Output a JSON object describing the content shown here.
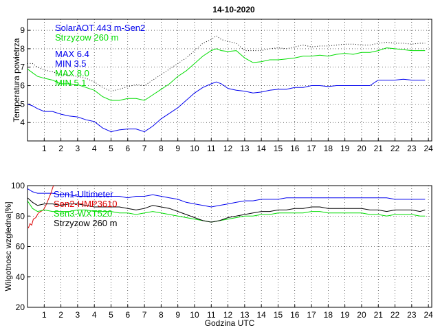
{
  "title": "14-10-2020",
  "colors": {
    "blue": "#0000ee",
    "green": "#00dd00",
    "black": "#000000",
    "red": "#dd0000"
  },
  "chart_data": [
    {
      "type": "line",
      "ylabel": "Temperatura powietrza",
      "xlim": [
        0,
        24.2
      ],
      "ylim": [
        3,
        9.6
      ],
      "xticks": [
        1,
        2,
        3,
        4,
        5,
        6,
        7,
        8,
        9,
        10,
        11,
        12,
        13,
        14,
        15,
        16,
        17,
        18,
        19,
        20,
        21,
        22,
        23,
        24
      ],
      "yticks": [
        4,
        5,
        6,
        7,
        8,
        9
      ],
      "grid": true,
      "legend": [
        "SolarAOT 443 m-Sen2",
        "Strzyzow 260 m"
      ],
      "annotations": [
        "MAX 6.4",
        "MIN 3.5",
        "MAX 8.0",
        "MIN 5.1"
      ],
      "series": [
        {
          "name": "SolarAOT 443 m-Sen2",
          "color": "blue",
          "style": "solid",
          "x": [
            0,
            0.3,
            0.6,
            1.0,
            1.5,
            2.0,
            2.5,
            3.0,
            3.5,
            4.0,
            4.5,
            5.0,
            5.5,
            6.0,
            6.5,
            7.0,
            7.5,
            8.0,
            8.5,
            9.0,
            9.5,
            10.0,
            10.5,
            11.0,
            11.3,
            11.6,
            12.0,
            12.5,
            13.0,
            13.5,
            14.0,
            14.5,
            15.0,
            15.5,
            16.0,
            16.5,
            17.0,
            17.5,
            18.0,
            18.5,
            19.0,
            19.5,
            20.0,
            20.5,
            21.0,
            21.5,
            22.0,
            22.5,
            23.0,
            23.5,
            23.8
          ],
          "y": [
            5.0,
            4.9,
            4.75,
            4.6,
            4.6,
            4.45,
            4.35,
            4.3,
            4.15,
            4.05,
            3.7,
            3.5,
            3.6,
            3.65,
            3.65,
            3.5,
            3.8,
            4.2,
            4.5,
            4.8,
            5.2,
            5.6,
            5.9,
            6.1,
            6.2,
            6.1,
            5.85,
            5.75,
            5.7,
            5.6,
            5.65,
            5.75,
            5.8,
            5.8,
            5.9,
            5.9,
            6.0,
            6.0,
            5.95,
            6.0,
            6.0,
            6.0,
            6.0,
            6.0,
            6.3,
            6.3,
            6.3,
            6.35,
            6.3,
            6.3,
            6.3
          ]
        },
        {
          "name": "Strzyzow 260 m",
          "color": "green",
          "style": "solid",
          "x": [
            0,
            0.3,
            0.6,
            1.0,
            1.5,
            2.0,
            2.5,
            3.0,
            3.5,
            4.0,
            4.5,
            5.0,
            5.5,
            6.0,
            6.5,
            7.0,
            7.5,
            8.0,
            8.5,
            9.0,
            9.5,
            10.0,
            10.5,
            11.0,
            11.3,
            11.6,
            12.0,
            12.5,
            13.0,
            13.5,
            14.0,
            14.5,
            15.0,
            15.5,
            16.0,
            16.5,
            17.0,
            17.5,
            18.0,
            18.5,
            19.0,
            19.5,
            20.0,
            20.5,
            21.0,
            21.5,
            22.0,
            22.5,
            23.0,
            23.5,
            23.8
          ],
          "y": [
            6.9,
            6.7,
            6.5,
            6.4,
            6.3,
            6.1,
            6.1,
            6.05,
            5.9,
            5.75,
            5.4,
            5.2,
            5.2,
            5.3,
            5.3,
            5.2,
            5.5,
            5.8,
            6.1,
            6.5,
            6.8,
            7.2,
            7.6,
            7.9,
            8.0,
            7.9,
            7.85,
            7.9,
            7.5,
            7.25,
            7.3,
            7.4,
            7.4,
            7.45,
            7.5,
            7.6,
            7.6,
            7.65,
            7.6,
            7.7,
            7.75,
            7.7,
            7.8,
            7.8,
            7.9,
            8.05,
            8.0,
            7.95,
            7.9,
            7.9,
            7.9
          ]
        },
        {
          "color": "black",
          "style": "dotted",
          "x": [
            0,
            0.3,
            0.6,
            1.0,
            1.5,
            2.0,
            2.5,
            3.0,
            3.5,
            4.0,
            4.5,
            5.0,
            5.5,
            6.0,
            6.5,
            7.0,
            7.5,
            8.0,
            8.5,
            9.0,
            9.5,
            10.0,
            10.5,
            11.0,
            11.3,
            11.6,
            12.0,
            12.5,
            13.0,
            13.5,
            14.0,
            14.5,
            15.0,
            15.5,
            16.0,
            16.5,
            17.0,
            17.5,
            18.0,
            18.5,
            19.0,
            19.5,
            20.0,
            20.5,
            21.0,
            21.5,
            22.0,
            22.5,
            23.0,
            23.5,
            23.8
          ],
          "y": [
            7.2,
            7.2,
            7.0,
            6.85,
            6.75,
            6.6,
            6.55,
            6.5,
            6.4,
            6.2,
            5.9,
            5.7,
            5.8,
            5.95,
            6.05,
            6.0,
            6.3,
            6.6,
            6.9,
            7.2,
            7.5,
            7.9,
            8.3,
            8.5,
            8.7,
            8.5,
            8.4,
            8.3,
            7.9,
            7.9,
            7.9,
            8.0,
            8.05,
            8.0,
            8.1,
            8.2,
            8.1,
            8.15,
            8.15,
            8.2,
            8.25,
            8.25,
            8.2,
            8.2,
            8.3,
            8.35,
            8.3,
            8.3,
            8.25,
            8.3,
            8.3
          ]
        }
      ]
    },
    {
      "type": "line",
      "xlabel": "Godzina UTC",
      "ylabel": "Wilgotnosc wzgledna[%]",
      "xlim": [
        0,
        24.2
      ],
      "ylim": [
        20,
        100
      ],
      "xticks": [
        1,
        2,
        3,
        4,
        5,
        6,
        7,
        8,
        9,
        10,
        11,
        12,
        13,
        14,
        15,
        16,
        17,
        18,
        19,
        20,
        21,
        22,
        23,
        24
      ],
      "yticks": [
        20,
        40,
        60,
        80,
        100
      ],
      "grid": true,
      "legend": [
        "Sen1-Ultimeter",
        "Sen2-HMP3610",
        "Sen3-WXT520",
        "Strzyzow 260 m"
      ],
      "series": [
        {
          "name": "Sen1-Ultimeter",
          "color": "blue",
          "style": "solid",
          "x": [
            0,
            0.3,
            0.6,
            1.0,
            1.5,
            2.0,
            2.5,
            3.0,
            3.5,
            4.0,
            4.5,
            5.0,
            5.5,
            6.0,
            6.5,
            7.0,
            7.5,
            8.0,
            8.5,
            9.0,
            9.5,
            10.0,
            10.5,
            11.0,
            11.5,
            12.0,
            12.5,
            13.0,
            13.5,
            14.0,
            14.5,
            15.0,
            15.5,
            16.0,
            16.5,
            17.0,
            17.5,
            18.0,
            18.5,
            19.0,
            19.5,
            20.0,
            20.5,
            21.0,
            21.5,
            22.0,
            22.5,
            23.0,
            23.5,
            23.8
          ],
          "y": [
            98,
            96,
            95,
            95,
            95,
            94,
            94,
            93,
            93,
            93,
            93,
            93,
            93,
            92,
            93,
            93,
            94,
            93,
            92,
            91,
            89,
            88,
            87,
            86,
            87,
            88,
            89,
            90,
            90,
            91,
            91,
            91,
            92,
            92,
            92,
            92,
            92,
            92,
            92,
            92,
            92,
            92,
            92,
            92,
            92,
            91,
            91,
            91,
            91,
            91
          ]
        },
        {
          "name": "Sen2-HMP3610",
          "color": "red",
          "style": "solid",
          "x": [
            0.05,
            0.15,
            0.25,
            0.35,
            0.5,
            0.65,
            0.8,
            0.95,
            1.1,
            1.25,
            1.4,
            1.55
          ],
          "y": [
            72,
            75,
            74,
            78,
            79,
            82,
            83,
            84,
            87,
            91,
            95,
            100
          ]
        },
        {
          "name": "Sen3-WXT520",
          "color": "green",
          "style": "solid",
          "x": [
            0,
            0.3,
            0.6,
            1.0,
            1.5,
            2.0,
            2.5,
            3.0,
            3.5,
            4.0,
            4.5,
            5.0,
            5.5,
            6.0,
            6.5,
            7.0,
            7.5,
            8.0,
            8.5,
            9.0,
            9.5,
            10.0,
            10.5,
            11.0,
            11.5,
            12.0,
            12.5,
            13.0,
            13.5,
            14.0,
            14.5,
            15.0,
            15.5,
            16.0,
            16.5,
            17.0,
            17.5,
            18.0,
            18.5,
            19.0,
            19.5,
            20.0,
            20.5,
            21.0,
            21.5,
            22.0,
            22.5,
            23.0,
            23.5,
            23.8
          ],
          "y": [
            90,
            85,
            83,
            84,
            83,
            83,
            83,
            84,
            84,
            83,
            83,
            83,
            82,
            82,
            81,
            82,
            83,
            82,
            81,
            80,
            79,
            78,
            77,
            76,
            77,
            78,
            79,
            80,
            80,
            81,
            81,
            82,
            82,
            82,
            82,
            83,
            83,
            82,
            82,
            82,
            82,
            82,
            81,
            81,
            80,
            81,
            81,
            81,
            80,
            80
          ]
        },
        {
          "name": "Strzyzow 260 m",
          "color": "black",
          "style": "solid",
          "x": [
            0,
            0.3,
            0.6,
            1.0,
            1.5,
            2.0,
            2.5,
            3.0,
            3.5,
            4.0,
            4.5,
            5.0,
            5.5,
            6.0,
            6.5,
            7.0,
            7.5,
            8.0,
            8.5,
            9.0,
            9.5,
            10.0,
            10.5,
            11.0,
            11.5,
            12.0,
            12.5,
            13.0,
            13.5,
            14.0,
            14.5,
            15.0,
            15.5,
            16.0,
            16.5,
            17.0,
            17.5,
            18.0,
            18.5,
            19.0,
            19.5,
            20.0,
            20.5,
            21.0,
            21.5,
            22.0,
            22.5,
            23.0,
            23.5,
            23.8
          ],
          "y": [
            92,
            89,
            87,
            88,
            88,
            87,
            88,
            88,
            87,
            86,
            86,
            86,
            86,
            85,
            84,
            85,
            87,
            86,
            85,
            83,
            81,
            79,
            77,
            76,
            77,
            79,
            80,
            81,
            82,
            83,
            83,
            84,
            84,
            85,
            85,
            86,
            86,
            85,
            85,
            85,
            85,
            85,
            84,
            84,
            83,
            84,
            84,
            84,
            83,
            84
          ]
        }
      ]
    }
  ]
}
